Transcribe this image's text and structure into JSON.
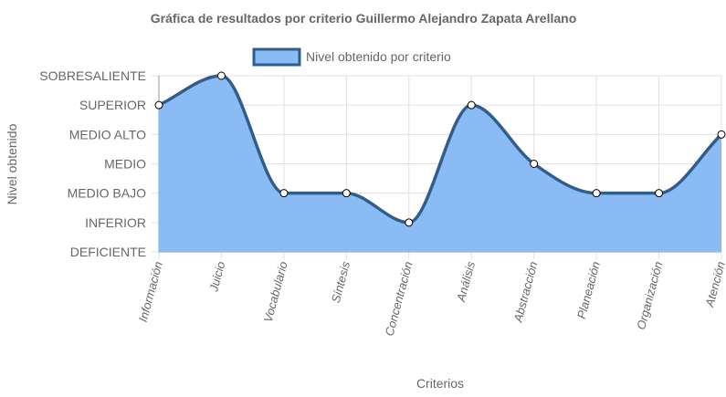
{
  "chart_data": {
    "type": "area",
    "title": "Gráfica de resultados por criterio Guillermo Alejandro Zapata Arellano",
    "xlabel": "Criterios",
    "ylabel": "Nivel obtenido",
    "categories": [
      "Información",
      "Juicio",
      "Vocabulario",
      "Síntesis",
      "Concentración",
      "Análisis",
      "Abstracción",
      "Planeación",
      "Organización",
      "Atención"
    ],
    "levels": [
      "DEFICIENTE",
      "INFERIOR",
      "MEDIO BAJO",
      "MEDIO",
      "MEDIO ALTO",
      "SUPERIOR",
      "SOBRESALIENTE"
    ],
    "series": [
      {
        "name": "Nivel obtenido por criterio",
        "values": [
          5,
          6,
          2,
          2,
          1,
          5,
          3,
          2,
          2,
          4
        ]
      }
    ],
    "ylim": [
      0,
      6
    ],
    "grid": true,
    "legend_position": "top",
    "colors": {
      "fill": "#8bbbf5",
      "stroke": "#2f5d8c",
      "grid": "#e0e0e0",
      "axis": "#999999",
      "text": "#666666"
    }
  }
}
